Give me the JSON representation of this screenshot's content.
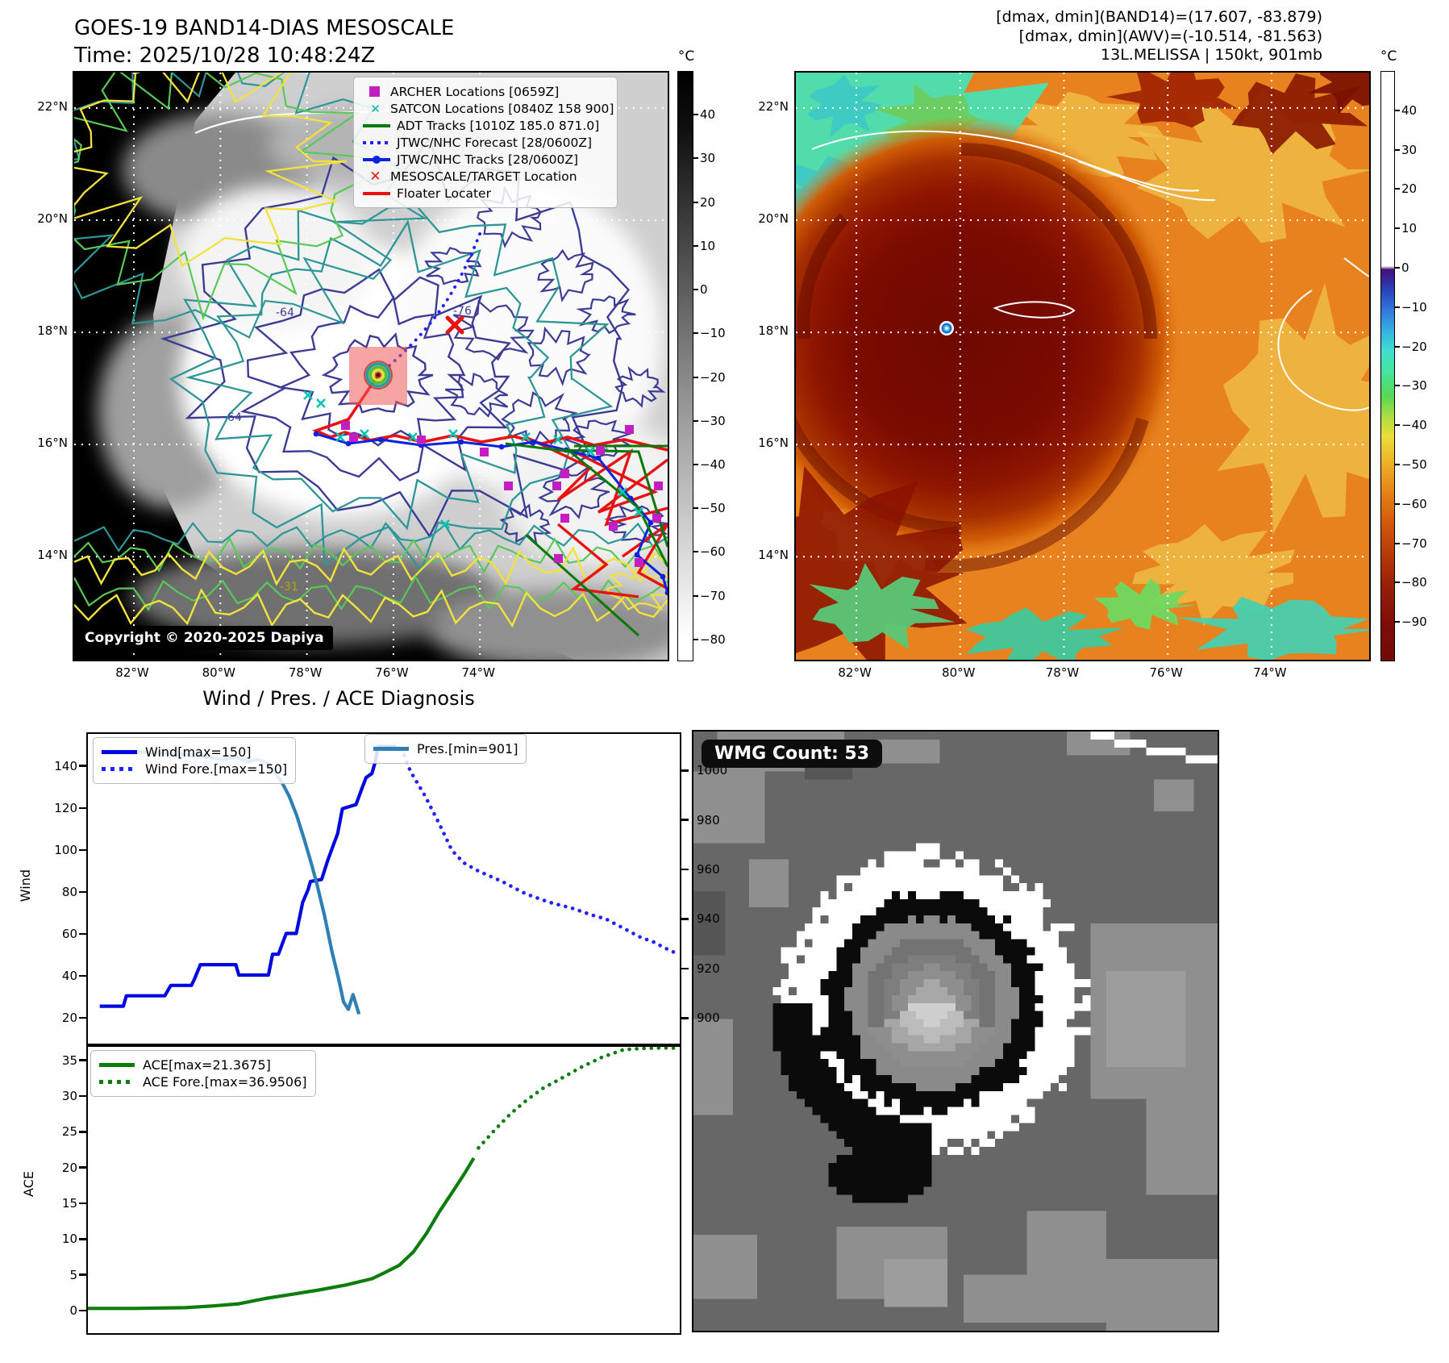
{
  "tl_panel": {
    "title": "GOES-19 BAND14-DIAS MESOSCALE",
    "subtitle": "Time: 2025/10/28 10:48:24Z",
    "copyright": "Copyright © 2020-2025 Dapiya",
    "lat_labels": [
      "22°N",
      "20°N",
      "18°N",
      "16°N",
      "14°N"
    ],
    "lon_labels": [
      "82°W",
      "80°W",
      "78°W",
      "76°W",
      "74°W"
    ],
    "legend_items": [
      {
        "label": "ARCHER Locations [0659Z]",
        "marker": "square",
        "color": "#c21ec2"
      },
      {
        "label": "SATCON Locations [0840Z 158 900]",
        "marker": "x",
        "color": "#00b2a2"
      },
      {
        "label": "ADT Tracks [1010Z 185.0 871.0]",
        "marker": "line",
        "color": "#087808"
      },
      {
        "label": "JTWC/NHC Forecast [28/0600Z]",
        "marker": "dotted",
        "color": "#2222ff"
      },
      {
        "label": "JTWC/NHC Tracks [28/0600Z]",
        "marker": "line-dot",
        "color": "#0822e0"
      },
      {
        "label": "MESOSCALE/TARGET Location",
        "marker": "bold-x",
        "color": "#e81212"
      },
      {
        "label": "Floater Locater",
        "marker": "line",
        "color": "#e81212"
      }
    ],
    "contour_labels": [
      "-64",
      "-76",
      "-31",
      "-54"
    ],
    "colorbar": {
      "unit": "°C",
      "vmax": 50,
      "vmin": -85,
      "ticks": [
        40,
        30,
        20,
        10,
        0,
        -10,
        -20,
        -30,
        -40,
        -50,
        -60,
        -70,
        -80
      ]
    }
  },
  "tr_panel": {
    "header_line1": "[dmax, dmin](BAND14)=(17.607, -83.879)",
    "header_line2": "[dmax, dmin](AWV)=(-10.514, -81.563)",
    "header_line3": "13L.MELISSA | 150kt, 901mb",
    "lat_labels": [
      "22°N",
      "20°N",
      "18°N",
      "16°N",
      "14°N"
    ],
    "lon_labels": [
      "82°W",
      "80°W",
      "78°W",
      "76°W",
      "74°W"
    ],
    "colorbar": {
      "unit": "°C",
      "vmax": 50,
      "vmin": -100,
      "ticks": [
        40,
        30,
        20,
        10,
        0,
        -10,
        -20,
        -30,
        -40,
        -50,
        -60,
        -70,
        -80,
        -90
      ]
    }
  },
  "bottom_left": {
    "title": "Wind / Pres. / ACE Diagnosis"
  },
  "bottom_right": {
    "wmg_label": "WMG Count: 53"
  },
  "chart_data": [
    {
      "type": "line",
      "title": "Wind / Pres. / ACE Diagnosis",
      "xlabel": "",
      "x_note": "normalized time, no x tick labels shown",
      "ylabel": "Wind",
      "y2label": "Pressure",
      "ylim": [
        7,
        156
      ],
      "y2lim": [
        889,
        1015.4
      ],
      "xlim": [
        0,
        1
      ],
      "yticks": [
        20,
        40,
        60,
        80,
        100,
        120,
        140
      ],
      "y2ticks": [
        900,
        920,
        940,
        960,
        980,
        1000
      ],
      "legend_left": [
        "Wind[max=150]",
        "Wind Fore.[max=150]"
      ],
      "legend_right": [
        "Pres.[min=901]"
      ],
      "series": [
        {
          "name": "Wind[max=150]",
          "axis": "y",
          "style": "solid",
          "color": "#0008dd",
          "points": [
            [
              0.02,
              25
            ],
            [
              0.06,
              25
            ],
            [
              0.065,
              30
            ],
            [
              0.13,
              30
            ],
            [
              0.14,
              35
            ],
            [
              0.175,
              35
            ],
            [
              0.18,
              38
            ],
            [
              0.19,
              45
            ],
            [
              0.25,
              45
            ],
            [
              0.255,
              40
            ],
            [
              0.305,
              40
            ],
            [
              0.312,
              50
            ],
            [
              0.322,
              50
            ],
            [
              0.335,
              60
            ],
            [
              0.352,
              60
            ],
            [
              0.363,
              75
            ],
            [
              0.372,
              81
            ],
            [
              0.376,
              85
            ],
            [
              0.395,
              86
            ],
            [
              0.405,
              95
            ],
            [
              0.414,
              102
            ],
            [
              0.422,
              108
            ],
            [
              0.43,
              120
            ],
            [
              0.453,
              122
            ],
            [
              0.462,
              129
            ],
            [
              0.47,
              135
            ],
            [
              0.48,
              137
            ],
            [
              0.486,
              143
            ],
            [
              0.49,
              150
            ],
            [
              0.518,
              150
            ],
            [
              0.523,
              148
            ]
          ]
        },
        {
          "name": "Wind Fore.[max=150]",
          "axis": "y",
          "style": "dotted",
          "color": "#2222ff",
          "points": [
            [
              0.53,
              149
            ],
            [
              0.545,
              138
            ],
            [
              0.57,
              126
            ],
            [
              0.595,
              112
            ],
            [
              0.615,
              100
            ],
            [
              0.635,
              94
            ],
            [
              0.66,
              90
            ],
            [
              0.7,
              85
            ],
            [
              0.74,
              79
            ],
            [
              0.78,
              75
            ],
            [
              0.82,
              72
            ],
            [
              0.85,
              69
            ],
            [
              0.875,
              67
            ],
            [
              0.895,
              64
            ],
            [
              0.915,
              61
            ],
            [
              0.935,
              58
            ],
            [
              0.955,
              56
            ],
            [
              0.975,
              53
            ],
            [
              0.99,
              51
            ]
          ]
        },
        {
          "name": "Pres.[min=901]",
          "axis": "y2",
          "style": "solid",
          "color": "#2e7fb5",
          "points": [
            [
              0.02,
              1008
            ],
            [
              0.1,
              1008
            ],
            [
              0.16,
              1007
            ],
            [
              0.2,
              1006
            ],
            [
              0.23,
              1005
            ],
            [
              0.25,
              1006
            ],
            [
              0.27,
              1004
            ],
            [
              0.285,
              1005
            ],
            [
              0.3,
              1004
            ],
            [
              0.312,
              1001
            ],
            [
              0.327,
              996
            ],
            [
              0.34,
              990
            ],
            [
              0.353,
              982
            ],
            [
              0.366,
              972
            ],
            [
              0.377,
              963
            ],
            [
              0.387,
              954
            ],
            [
              0.4,
              941
            ],
            [
              0.412,
              927
            ],
            [
              0.424,
              915
            ],
            [
              0.432,
              906
            ],
            [
              0.44,
              903
            ],
            [
              0.448,
              909
            ],
            [
              0.458,
              901
            ]
          ]
        }
      ]
    },
    {
      "type": "line",
      "ylabel": "ACE",
      "ylim": [
        -3.4,
        37.1
      ],
      "xlim": [
        0,
        1
      ],
      "yticks": [
        0,
        5,
        10,
        15,
        20,
        25,
        30,
        35
      ],
      "legend_left": [
        "ACE[max=21.3675]",
        "ACE Fore.[max=36.9506]"
      ],
      "series": [
        {
          "name": "ACE[max=21.3675]",
          "axis": "y",
          "style": "solid",
          "color": "#0c7c0c",
          "points": [
            [
              0.0,
              0.1
            ],
            [
              0.08,
              0.1
            ],
            [
              0.165,
              0.2
            ],
            [
              0.21,
              0.45
            ],
            [
              0.255,
              0.75
            ],
            [
              0.3,
              1.5
            ],
            [
              0.345,
              2.1
            ],
            [
              0.39,
              2.7
            ],
            [
              0.435,
              3.4
            ],
            [
              0.48,
              4.3
            ],
            [
              0.5,
              5.1
            ],
            [
              0.526,
              6.2
            ],
            [
              0.55,
              8.1
            ],
            [
              0.572,
              10.7
            ],
            [
              0.594,
              13.8
            ],
            [
              0.617,
              16.7
            ],
            [
              0.638,
              19.4
            ],
            [
              0.652,
              21.37
            ]
          ]
        },
        {
          "name": "ACE Fore.[max=36.9506]",
          "axis": "y",
          "style": "dotted",
          "color": "#0c7c0c",
          "points": [
            [
              0.66,
              22.8
            ],
            [
              0.688,
              25.4
            ],
            [
              0.715,
              27.7
            ],
            [
              0.742,
              29.6
            ],
            [
              0.77,
              31.3
            ],
            [
              0.797,
              32.5
            ],
            [
              0.833,
              34.2
            ],
            [
              0.868,
              35.6
            ],
            [
              0.905,
              36.7
            ],
            [
              0.94,
              36.9
            ],
            [
              0.975,
              36.95
            ],
            [
              1.0,
              36.9
            ]
          ]
        }
      ]
    }
  ],
  "palette": {
    "wind_color": "#0008dd",
    "wind_forecast_color": "#2222ff",
    "pressure_color": "#2e7fb5",
    "ace_color": "#0c7c0c",
    "tl_cbar_stops": [
      [
        "#000000",
        0
      ],
      [
        "#101010",
        10
      ],
      [
        "#9a9a9a",
        58
      ],
      [
        "#ffffff",
        96
      ],
      [
        "#ffffff",
        100
      ]
    ],
    "tr_cbar_stops": [
      [
        "#ffffff",
        0
      ],
      [
        "#ffffff",
        33
      ],
      [
        "#451075",
        33.6
      ],
      [
        "#2a3ab4",
        36.5
      ],
      [
        "#2f6fd8",
        40
      ],
      [
        "#38b0e0",
        44
      ],
      [
        "#3fe0d0",
        47.5
      ],
      [
        "#46e49c",
        51
      ],
      [
        "#55d855",
        55
      ],
      [
        "#aade42",
        58.5
      ],
      [
        "#eede38",
        62
      ],
      [
        "#eeac26",
        67
      ],
      [
        "#e27e16",
        72
      ],
      [
        "#d0570e",
        77
      ],
      [
        "#b23708",
        82.5
      ],
      [
        "#951d08",
        88
      ],
      [
        "#7c0d06",
        94
      ],
      [
        "#720a06",
        100
      ]
    ],
    "map_cloud_gray": "#cfcfcf",
    "contour_navy": "#3c3c94",
    "contour_teal": "#2e9696",
    "contour_green": "#58c858",
    "contour_yellow": "#f2e23c",
    "coast_white": "#ffffff",
    "ir_base_orange": "#e8821e",
    "ir_core_red": "#7a0b00",
    "ir_teal": "#52dcac",
    "ir_green": "#6ecc5a",
    "ir_yellow": "#f0c24a",
    "ir_cyan": "#3cc8c8",
    "target_box": "rgba(240,90,90,0.55)",
    "track_red": "#e81212",
    "track_blue": "#0822e0",
    "track_green": "#067806",
    "archer_magenta": "#c21ec2",
    "satcon_cyan": "#00c2b2",
    "wmg_bg": "#676767",
    "wmg_light": "#8f8f8f",
    "wmg_lighter": "#9d9d9d",
    "wmg_white": "#ffffff",
    "wmg_black": "#0b0b0b"
  }
}
